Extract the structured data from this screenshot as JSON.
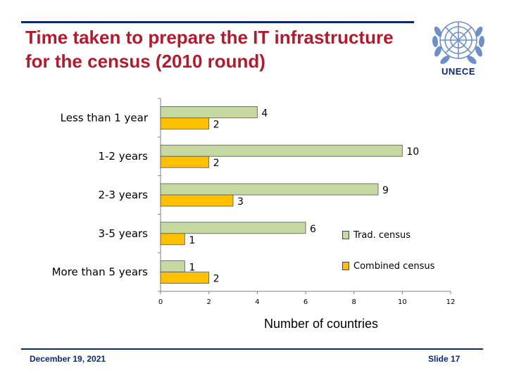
{
  "slide": {
    "title_line1": "Time taken to prepare the IT infrastructure",
    "title_line2": "for the census (2010 round)",
    "logo_text": "UNECE",
    "date": "December 19, 2021",
    "slide_number": "Slide 17"
  },
  "colors": {
    "trad": "#c6d9a0",
    "combined": "#ffc000",
    "title": "#b01c2e",
    "brand": "#0b2a6e"
  },
  "chart_data": {
    "type": "bar",
    "orientation": "horizontal",
    "categories": [
      "Less than 1 year",
      "1-2 years",
      "2-3 years",
      "3-5 years",
      "More than 5 years"
    ],
    "series": [
      {
        "name": "Trad. census",
        "values": [
          4,
          10,
          9,
          6,
          1
        ]
      },
      {
        "name": "Combined census",
        "values": [
          2,
          2,
          3,
          1,
          2
        ]
      }
    ],
    "x_ticks": [
      "0",
      "2",
      "4",
      "6",
      "8",
      "10",
      "12"
    ],
    "xlim": [
      0,
      12
    ],
    "xlabel": "Number of countries",
    "legend_position": "right",
    "grid": false
  }
}
